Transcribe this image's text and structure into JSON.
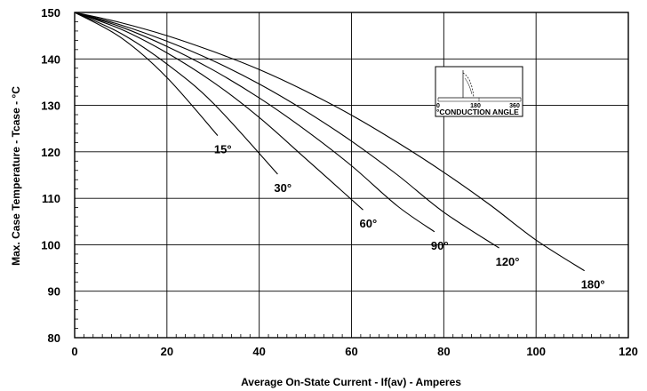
{
  "chart_data": {
    "type": "line",
    "xlabel": "Average On-State Current - If(av) - Amperes",
    "ylabel": "Max. Case Temperature - Tcase - °C",
    "xlim": [
      0,
      120
    ],
    "ylim": [
      80,
      150
    ],
    "x_ticks": [
      "0",
      "20",
      "40",
      "60",
      "80",
      "100",
      "120"
    ],
    "y_ticks": [
      "80",
      "90",
      "100",
      "110",
      "120",
      "130",
      "140",
      "150"
    ],
    "grid": true,
    "series": [
      {
        "name": "15°",
        "x": [
          0,
          10,
          20,
          31
        ],
        "y": [
          150,
          144.6,
          136.0,
          123.5
        ]
      },
      {
        "name": "30°",
        "x": [
          0,
          10,
          20,
          30,
          44
        ],
        "y": [
          150,
          145.5,
          138.9,
          130.5,
          115.2
        ]
      },
      {
        "name": "60°",
        "x": [
          0,
          10,
          20,
          30,
          40,
          50,
          62.5
        ],
        "y": [
          150,
          146.4,
          141.3,
          135.0,
          127.4,
          118.6,
          107.5
        ]
      },
      {
        "name": "90°",
        "x": [
          0,
          10,
          20,
          30,
          40,
          50,
          60,
          70,
          78
        ],
        "y": [
          150,
          146.9,
          142.7,
          137.6,
          131.6,
          124.7,
          117.0,
          108.3,
          102.8
        ]
      },
      {
        "name": "120°",
        "x": [
          0,
          10,
          20,
          30,
          40,
          50,
          60,
          70,
          80,
          92
        ],
        "y": [
          150,
          147.3,
          143.8,
          139.6,
          134.6,
          128.8,
          122.3,
          115.0,
          107.0,
          99.3
        ]
      },
      {
        "name": "180°",
        "x": [
          0,
          10,
          20,
          30,
          40,
          50,
          60,
          70,
          80,
          90,
          100,
          110.5
        ],
        "y": [
          150,
          147.8,
          145.0,
          141.6,
          137.7,
          133.1,
          127.9,
          122.0,
          115.6,
          108.6,
          101.0,
          94.4
        ]
      }
    ],
    "inset": {
      "title": "°CONDUCTION ANGLE",
      "tick_labels": [
        "0",
        "180",
        "360"
      ]
    }
  }
}
